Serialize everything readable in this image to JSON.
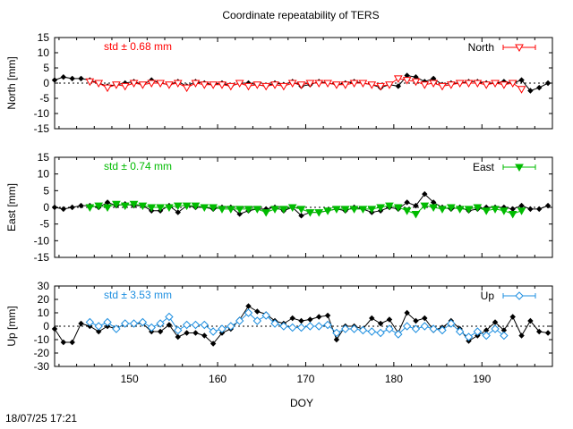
{
  "title": "Coordinate repeatability of TERS",
  "footer_timestamp": "18/07/25 17:21",
  "chart_data": [
    {
      "type": "line",
      "panel": "north",
      "ylabel": "North [mm]",
      "ylim": [
        -15,
        15
      ],
      "yticks": [
        15,
        10,
        5,
        0,
        -5,
        -10,
        -15
      ],
      "xlim": [
        141.5,
        198
      ],
      "xticks": [
        150,
        160,
        170,
        180,
        190
      ],
      "xlabel": "",
      "annotation": "std ± 0.68 mm",
      "annotation_color": "#ff0000",
      "legend": "North",
      "legend_position": "top-right",
      "series": [
        {
          "name": "black",
          "color": "#000000",
          "x": [
            141.5,
            142.5,
            143.5,
            144.5,
            145.5,
            146.5,
            147.5,
            148.5,
            149.5,
            150.5,
            151.5,
            152.5,
            153.5,
            154.5,
            155.5,
            156.5,
            157.5,
            158.5,
            159.5,
            160.5,
            161.5,
            162.5,
            163.5,
            164.5,
            165.5,
            166.5,
            167.5,
            168.5,
            169.5,
            170.5,
            171.5,
            172.5,
            173.5,
            174.5,
            175.5,
            176.5,
            177.5,
            178.5,
            179.5,
            180.5,
            181.5,
            182.5,
            183.5,
            184.5,
            185.5,
            186.5,
            187.5,
            188.5,
            189.5,
            190.5,
            191.5,
            192.5,
            193.5,
            194.5,
            195.5,
            196.5,
            197.5
          ],
          "y": [
            1.0,
            2.0,
            1.5,
            1.5,
            1.0,
            0.0,
            -1.0,
            -0.5,
            0.0,
            0.5,
            -0.5,
            1.0,
            0.0,
            -0.5,
            0.5,
            -1.0,
            0.5,
            0.0,
            -0.5,
            0.0,
            -1.0,
            0.0,
            0.0,
            -0.5,
            -1.0,
            0.0,
            -0.5,
            0.5,
            -1.0,
            -0.5,
            0.5,
            0.0,
            -0.5,
            0.0,
            0.5,
            0.0,
            -0.5,
            -1.5,
            -0.5,
            -1.0,
            2.5,
            2.0,
            0.5,
            1.5,
            -0.5,
            0.0,
            0.0,
            0.5,
            0.5,
            0.0,
            0.0,
            0.5,
            0.0,
            1.0,
            -2.5,
            -1.5,
            0.0
          ]
        },
        {
          "name": "red",
          "color": "#ff0000",
          "marker": "triangle-down-open",
          "x": [
            145.5,
            146.5,
            147.5,
            148.5,
            149.5,
            150.5,
            151.5,
            152.5,
            153.5,
            154.5,
            155.5,
            156.5,
            157.5,
            158.5,
            159.5,
            160.5,
            161.5,
            162.5,
            163.5,
            164.5,
            165.5,
            166.5,
            167.5,
            168.5,
            169.5,
            170.5,
            171.5,
            172.5,
            173.5,
            174.5,
            175.5,
            176.5,
            177.5,
            178.5,
            179.5,
            180.5,
            181.5,
            182.5,
            183.5,
            184.5,
            185.5,
            186.5,
            187.5,
            188.5,
            189.5,
            190.5,
            191.5,
            192.5,
            193.5,
            194.5
          ],
          "y": [
            0.5,
            0.0,
            -1.5,
            -0.5,
            -1.0,
            0.0,
            -0.5,
            0.0,
            0.0,
            -0.5,
            0.0,
            -1.5,
            0.0,
            -0.5,
            -0.5,
            -0.5,
            -1.0,
            0.0,
            -1.0,
            -0.5,
            -1.0,
            -0.5,
            -1.0,
            0.0,
            -0.5,
            0.0,
            0.0,
            0.0,
            -0.5,
            -0.5,
            0.0,
            0.0,
            -0.5,
            -1.0,
            -0.5,
            1.5,
            1.0,
            0.5,
            -0.5,
            0.0,
            -1.0,
            -0.5,
            0.0,
            0.0,
            0.0,
            -0.5,
            0.0,
            -0.5,
            0.0,
            -2.0
          ]
        }
      ]
    },
    {
      "type": "line",
      "panel": "east",
      "ylabel": "East [mm]",
      "ylim": [
        -15,
        15
      ],
      "yticks": [
        15,
        10,
        5,
        0,
        -5,
        -10,
        -15
      ],
      "xlim": [
        141.5,
        198
      ],
      "xticks": [
        150,
        160,
        170,
        180,
        190
      ],
      "xlabel": "",
      "annotation": "std ± 0.74 mm",
      "annotation_color": "#00bb00",
      "legend": "East",
      "legend_position": "top-right",
      "series": [
        {
          "name": "black",
          "color": "#000000",
          "x": [
            141.5,
            142.5,
            143.5,
            144.5,
            145.5,
            146.5,
            147.5,
            148.5,
            149.5,
            150.5,
            151.5,
            152.5,
            153.5,
            154.5,
            155.5,
            156.5,
            157.5,
            158.5,
            159.5,
            160.5,
            161.5,
            162.5,
            163.5,
            164.5,
            165.5,
            166.5,
            167.5,
            168.5,
            169.5,
            170.5,
            171.5,
            172.5,
            173.5,
            174.5,
            175.5,
            176.5,
            177.5,
            178.5,
            179.5,
            180.5,
            181.5,
            182.5,
            183.5,
            184.5,
            185.5,
            186.5,
            187.5,
            188.5,
            189.5,
            190.5,
            191.5,
            192.5,
            193.5,
            194.5,
            195.5,
            196.5,
            197.5
          ],
          "y": [
            0.0,
            -0.5,
            0.0,
            0.5,
            0.5,
            0.0,
            1.5,
            0.5,
            1.0,
            0.5,
            0.5,
            -1.0,
            -1.0,
            0.5,
            -1.5,
            0.5,
            0.0,
            0.0,
            -0.5,
            0.0,
            0.0,
            -2.0,
            -1.0,
            -0.5,
            -0.5,
            0.0,
            -1.0,
            0.0,
            -2.5,
            -1.5,
            -1.5,
            -1.0,
            -0.5,
            -1.0,
            0.0,
            -0.5,
            -1.5,
            -1.0,
            0.0,
            -0.5,
            1.5,
            0.5,
            4.0,
            1.5,
            0.0,
            -0.5,
            0.0,
            -1.0,
            -0.5,
            0.0,
            0.0,
            0.0,
            -0.5,
            0.5,
            -0.5,
            -0.5,
            0.5
          ]
        },
        {
          "name": "green",
          "color": "#00bb00",
          "marker": "triangle-down-filled",
          "x": [
            145.5,
            146.5,
            147.5,
            148.5,
            149.5,
            150.5,
            151.5,
            152.5,
            153.5,
            154.5,
            155.5,
            156.5,
            157.5,
            158.5,
            159.5,
            160.5,
            161.5,
            162.5,
            163.5,
            164.5,
            165.5,
            166.5,
            167.5,
            168.5,
            169.5,
            170.5,
            171.5,
            172.5,
            173.5,
            174.5,
            175.5,
            176.5,
            177.5,
            178.5,
            179.5,
            180.5,
            181.5,
            182.5,
            183.5,
            184.5,
            185.5,
            186.5,
            187.5,
            188.5,
            189.5,
            190.5,
            191.5,
            192.5,
            193.5,
            194.5
          ],
          "y": [
            0.0,
            0.5,
            0.0,
            1.0,
            0.5,
            1.0,
            0.5,
            0.0,
            0.0,
            0.0,
            0.5,
            0.5,
            0.5,
            0.0,
            0.0,
            -0.5,
            -0.5,
            -0.5,
            -0.5,
            -0.5,
            -1.5,
            -0.5,
            -0.5,
            0.0,
            -0.5,
            -1.5,
            -1.5,
            -1.0,
            -0.5,
            -0.5,
            -0.5,
            -0.5,
            -0.5,
            0.0,
            0.5,
            0.0,
            -1.0,
            -2.0,
            0.5,
            0.0,
            -0.5,
            0.0,
            -0.5,
            -0.5,
            0.0,
            -1.0,
            -0.5,
            -1.0,
            -2.0,
            -1.0
          ]
        }
      ]
    },
    {
      "type": "line",
      "panel": "up",
      "ylabel": "Up [mm]",
      "ylim": [
        -30,
        30
      ],
      "yticks": [
        30,
        20,
        10,
        0,
        -10,
        -20,
        -30
      ],
      "xlim": [
        141.5,
        198
      ],
      "xticks": [
        150,
        160,
        170,
        180,
        190
      ],
      "xlabel": "DOY",
      "annotation": "std ± 3.53 mm",
      "annotation_color": "#1e8fe0",
      "legend": "Up",
      "legend_position": "top-right",
      "series": [
        {
          "name": "black",
          "color": "#000000",
          "x": [
            141.5,
            142.5,
            143.5,
            144.5,
            145.5,
            146.5,
            147.5,
            148.5,
            149.5,
            150.5,
            151.5,
            152.5,
            153.5,
            154.5,
            155.5,
            156.5,
            157.5,
            158.5,
            159.5,
            160.5,
            161.5,
            162.5,
            163.5,
            164.5,
            165.5,
            166.5,
            167.5,
            168.5,
            169.5,
            170.5,
            171.5,
            172.5,
            173.5,
            174.5,
            175.5,
            176.5,
            177.5,
            178.5,
            179.5,
            180.5,
            181.5,
            182.5,
            183.5,
            184.5,
            185.5,
            186.5,
            187.5,
            188.5,
            189.5,
            190.5,
            191.5,
            192.5,
            193.5,
            194.5,
            195.5,
            196.5,
            197.5
          ],
          "y": [
            -2,
            -12,
            -12,
            2,
            0,
            -4,
            0,
            -2,
            2,
            2,
            2,
            -4,
            -4,
            1,
            -8,
            -5,
            -5,
            -7,
            -13,
            -5,
            -2,
            5,
            15,
            11,
            9,
            4,
            2,
            6,
            4,
            5,
            7,
            8,
            -10,
            0,
            0,
            -2,
            6,
            2,
            5,
            -5,
            10,
            4,
            6,
            -3,
            -1,
            4,
            -2,
            -11,
            -7,
            -3,
            3,
            -3,
            7,
            -7,
            4,
            -4,
            -5
          ]
        },
        {
          "name": "blue",
          "color": "#1e8fe0",
          "marker": "diamond-open",
          "x": [
            145.5,
            146.5,
            147.5,
            148.5,
            149.5,
            150.5,
            151.5,
            152.5,
            153.5,
            154.5,
            155.5,
            156.5,
            157.5,
            158.5,
            159.5,
            160.5,
            161.5,
            162.5,
            163.5,
            164.5,
            165.5,
            166.5,
            167.5,
            168.5,
            169.5,
            170.5,
            171.5,
            172.5,
            173.5,
            174.5,
            175.5,
            176.5,
            177.5,
            178.5,
            179.5,
            180.5,
            181.5,
            182.5,
            183.5,
            184.5,
            185.5,
            186.5,
            187.5,
            188.5,
            189.5,
            190.5,
            191.5,
            192.5
          ],
          "y": [
            3,
            0,
            3,
            -2,
            2,
            2,
            3,
            -1,
            2,
            7,
            -3,
            1,
            1,
            1,
            -4,
            -2,
            0,
            4,
            10,
            4,
            8,
            2,
            0,
            -1,
            -1,
            0,
            0,
            1,
            -5,
            -2,
            -2,
            -3,
            -4,
            -5,
            -2,
            -6,
            0,
            -2,
            0,
            -2,
            -3,
            2,
            -4,
            -8,
            -4,
            -7,
            -2,
            -7
          ]
        }
      ]
    }
  ]
}
